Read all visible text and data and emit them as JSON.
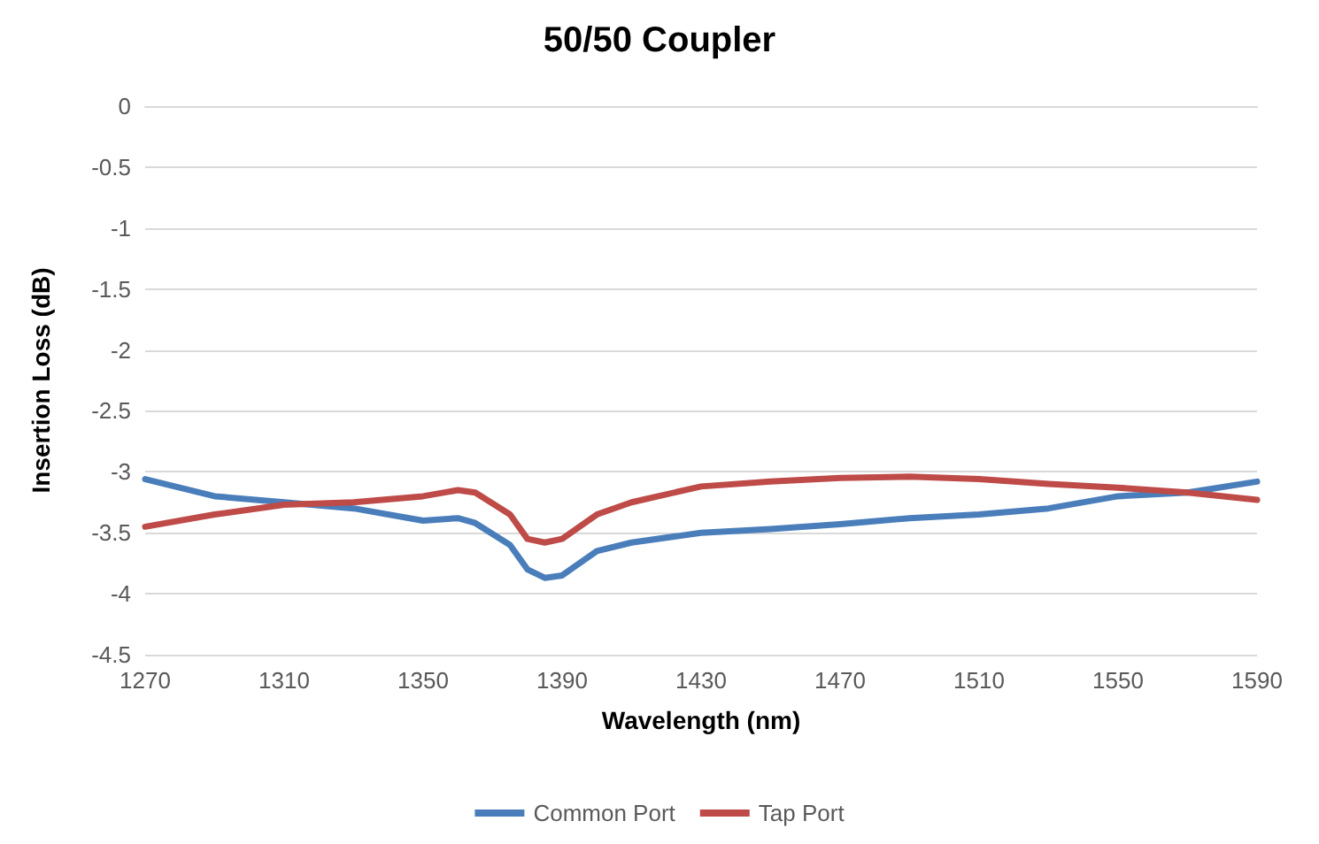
{
  "chart_data": {
    "type": "line",
    "title": "50/50 Coupler",
    "xlabel": "Wavelength (nm)",
    "ylabel": "Insertion Loss (dB)",
    "x": [
      1270,
      1290,
      1310,
      1330,
      1350,
      1360,
      1365,
      1375,
      1380,
      1385,
      1390,
      1395,
      1400,
      1410,
      1430,
      1450,
      1470,
      1490,
      1510,
      1530,
      1550,
      1570,
      1590
    ],
    "series": [
      {
        "name": "Common Port",
        "color": "#4a7ebb",
        "values": [
          -3.06,
          -3.2,
          -3.25,
          -3.3,
          -3.4,
          -3.38,
          -3.42,
          -3.6,
          -3.8,
          -3.87,
          -3.85,
          -3.75,
          -3.65,
          -3.58,
          -3.5,
          -3.47,
          -3.43,
          -3.38,
          -3.35,
          -3.3,
          -3.2,
          -3.17,
          -3.08
        ]
      },
      {
        "name": "Tap Port",
        "color": "#be4b48",
        "values": [
          -3.45,
          -3.35,
          -3.27,
          -3.25,
          -3.2,
          -3.15,
          -3.17,
          -3.35,
          -3.55,
          -3.58,
          -3.55,
          -3.45,
          -3.35,
          -3.25,
          -3.12,
          -3.08,
          -3.05,
          -3.04,
          -3.06,
          -3.1,
          -3.13,
          -3.17,
          -3.23
        ]
      }
    ],
    "xlim": [
      1270,
      1590
    ],
    "xticks": [
      1270,
      1310,
      1350,
      1390,
      1430,
      1470,
      1510,
      1550,
      1590
    ],
    "ylim": [
      -4.5,
      0
    ],
    "yticks": [
      -4.5,
      -4,
      -3.5,
      -3,
      -2.5,
      -2,
      -1.5,
      -1,
      -0.5,
      0
    ],
    "grid": "y",
    "legend": "bottom",
    "marker": "none",
    "line_style": "solid"
  }
}
